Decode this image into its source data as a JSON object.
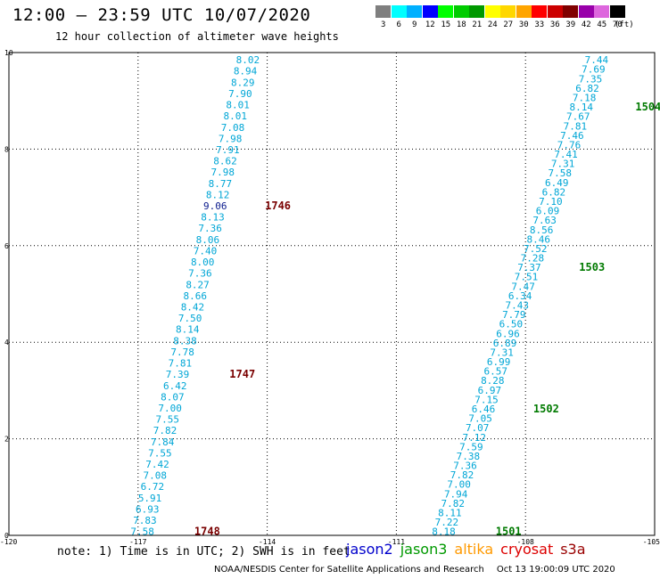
{
  "header": {
    "title": "12:00 — 23:59 UTC 10/07/2020",
    "subtitle": "12 hour collection of altimeter wave heights"
  },
  "legend": {
    "unit": "(ft)",
    "items": [
      {
        "label": "3",
        "color": "#7f7f7f"
      },
      {
        "label": "6",
        "color": "#00ffff"
      },
      {
        "label": "9",
        "color": "#00b0ff"
      },
      {
        "label": "12",
        "color": "#0000ff"
      },
      {
        "label": "15",
        "color": "#00ff00"
      },
      {
        "label": "18",
        "color": "#00cc00"
      },
      {
        "label": "21",
        "color": "#009900"
      },
      {
        "label": "24",
        "color": "#ffff00"
      },
      {
        "label": "27",
        "color": "#ffd700"
      },
      {
        "label": "30",
        "color": "#ffa500"
      },
      {
        "label": "33",
        "color": "#ff0000"
      },
      {
        "label": "36",
        "color": "#cc0000"
      },
      {
        "label": "39",
        "color": "#800000"
      },
      {
        "label": "42",
        "color": "#9900aa"
      },
      {
        "label": "45",
        "color": "#dd66dd"
      },
      {
        "label": "70",
        "color": "#000000"
      }
    ]
  },
  "map": {
    "x_ticks": [
      "-120",
      "-117",
      "-114",
      "-111",
      "-108",
      "-105"
    ],
    "y_ticks": [
      "0",
      "2",
      "4",
      "6",
      "8",
      "10"
    ],
    "x_values": [
      -120,
      -117,
      -114,
      -111,
      -108,
      -105
    ],
    "y_values": [
      0,
      2,
      4,
      6,
      8,
      10
    ],
    "xlim": [
      -120,
      -105
    ],
    "ylim": [
      0,
      10
    ],
    "colors": {
      "obs": "#00a6d6",
      "high": "#0a1a8c",
      "label1": "#7a0000",
      "label2": "#007a00"
    },
    "tracks": [
      {
        "values": [
          "7.58",
          "7.83",
          "6.93",
          "5.91",
          "6.72",
          "7.08",
          "7.42",
          "7.55",
          "7.84",
          "7.82",
          "7.55",
          "7.00",
          "8.07",
          "6.42",
          "7.39",
          "7.81",
          "7.78",
          "8.38",
          "8.14",
          "7.50",
          "8.42",
          "8.66",
          "8.27",
          "7.36",
          "8.00",
          "7.40",
          "8.06",
          "7.36",
          "8.13",
          "9.06",
          "8.12",
          "8.77",
          "7.98",
          "8.62",
          "7.91",
          "7.98",
          "7.08",
          "8.01",
          "8.01",
          "7.90",
          "8.29",
          "8.94",
          "8.02"
        ],
        "lon_start": -116.9,
        "lon_end": -114.45,
        "lat_start": 0.08,
        "lat_end": 9.85,
        "highlight_index": 29,
        "labels": [
          {
            "text": "1748",
            "index": 0,
            "dlon": 1.0
          },
          {
            "text": "1747",
            "index": 14,
            "dlon": 1.0
          },
          {
            "text": "1746",
            "index": 29,
            "dlon": 0.95
          }
        ]
      },
      {
        "values": [
          "8.18",
          "7.22",
          "8.11",
          "7.82",
          "7.94",
          "7.00",
          "7.82",
          "7.36",
          "7.38",
          "7.59",
          "7.12",
          "7.07",
          "7.05",
          "6.46",
          "7.15",
          "6.97",
          "8.28",
          "6.57",
          "6.99",
          "7.31",
          "6.89",
          "6.96",
          "6.50",
          "7.79",
          "7.43",
          "6.34",
          "7.47",
          "7.51",
          "7.37",
          "7.28",
          "7.52",
          "8.46",
          "8.56",
          "7.63",
          "6.09",
          "7.10",
          "6.82",
          "6.49",
          "7.58",
          "7.31",
          "7.41",
          "7.76",
          "7.46",
          "7.81",
          "7.67",
          "8.14",
          "7.18",
          "6.82",
          "7.35",
          "7.69",
          "7.44"
        ],
        "lon_start": -109.9,
        "lon_end": -106.35,
        "lat_start": 0.08,
        "lat_end": 9.85,
        "labels": [
          {
            "text": "1501",
            "index": 0,
            "dlon": 1.0
          },
          {
            "text": "1502",
            "index": 13,
            "dlon": 0.95
          },
          {
            "text": "1503",
            "index": 28,
            "dlon": 0.95
          },
          {
            "text": "1504",
            "index": 45,
            "dlon": 1.05
          }
        ]
      }
    ]
  },
  "note": "note: 1) Time is in UTC; 2) SWH is in feet",
  "satellites": [
    {
      "name": "jason2",
      "color": "#0000cc"
    },
    {
      "name": "jason3",
      "color": "#009900"
    },
    {
      "name": "altika",
      "color": "#ff9900"
    },
    {
      "name": "cryosat",
      "color": "#dd0000"
    },
    {
      "name": "s3a",
      "color": "#990000"
    }
  ],
  "footer": {
    "center": "NOAA/NESDIS Center for Satellite Applications and Research",
    "timestamp": "Oct 13 19:00:09 UTC 2020"
  }
}
